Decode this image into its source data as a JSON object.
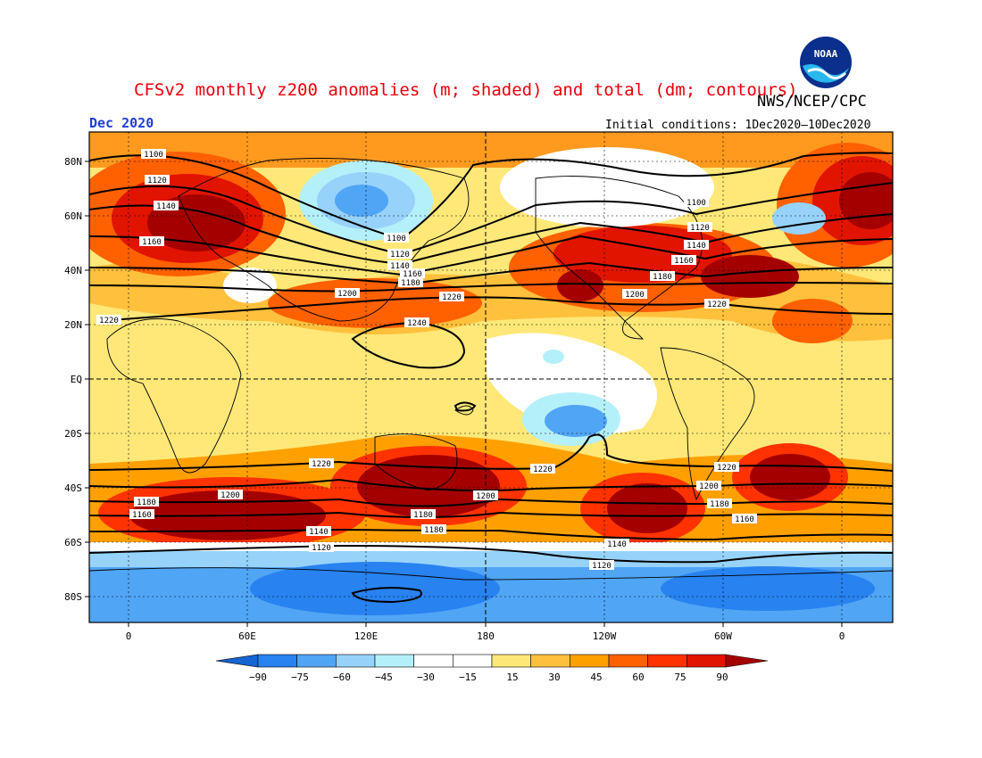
{
  "header": {
    "title": "CFSv2 monthly z200 anomalies (m; shaded) and total (dm; contours)",
    "credit": "NWS/NCEP/CPC",
    "month": "Dec 2020",
    "initial_conditions": "Initial conditions: 1Dec2020–10Dec2020",
    "logo_text": "NOAA"
  },
  "axes": {
    "lat_labels": [
      "80N",
      "60N",
      "40N",
      "20N",
      "EQ",
      "20S",
      "40S",
      "60S",
      "80S"
    ],
    "lon_labels": [
      "0",
      "60E",
      "120E",
      "180",
      "120W",
      "60W",
      "0"
    ]
  },
  "contour_labels": [
    {
      "id": "c1100a",
      "text": "1100"
    },
    {
      "id": "c1120a",
      "text": "1120"
    },
    {
      "id": "c1140a",
      "text": "1140"
    },
    {
      "id": "c1160a",
      "text": "1160"
    },
    {
      "id": "c1220a",
      "text": "1220"
    },
    {
      "id": "c1100b",
      "text": "1100"
    },
    {
      "id": "c1120b",
      "text": "1120"
    },
    {
      "id": "c1140b",
      "text": "1140"
    },
    {
      "id": "c1160b",
      "text": "1160"
    },
    {
      "id": "c1180b",
      "text": "1180"
    },
    {
      "id": "c1200b",
      "text": "1200"
    },
    {
      "id": "c1220b",
      "text": "1220"
    },
    {
      "id": "c1240",
      "text": "1240"
    },
    {
      "id": "c1100c",
      "text": "1100"
    },
    {
      "id": "c1120c",
      "text": "1120"
    },
    {
      "id": "c1140c",
      "text": "1140"
    },
    {
      "id": "c1160c",
      "text": "1160"
    },
    {
      "id": "c1180c",
      "text": "1180"
    },
    {
      "id": "c1200c",
      "text": "1200"
    },
    {
      "id": "c1220c",
      "text": "1220"
    },
    {
      "id": "s1220a",
      "text": "1220"
    },
    {
      "id": "s1220b",
      "text": "1220"
    },
    {
      "id": "s1220c",
      "text": "1220"
    },
    {
      "id": "s1200a",
      "text": "1200"
    },
    {
      "id": "s1200b",
      "text": "1200"
    },
    {
      "id": "s1200c",
      "text": "1200"
    },
    {
      "id": "s1180a",
      "text": "1180"
    },
    {
      "id": "s1180b",
      "text": "1180"
    },
    {
      "id": "s1180c",
      "text": "1180"
    },
    {
      "id": "s1160a",
      "text": "1160"
    },
    {
      "id": "s1160b",
      "text": "1160"
    },
    {
      "id": "s1140a",
      "text": "1140"
    },
    {
      "id": "s1140b",
      "text": "1140"
    },
    {
      "id": "s1120a",
      "text": "1120"
    },
    {
      "id": "s1120b",
      "text": "1120"
    }
  ],
  "colorbar": {
    "ticks": [
      "−90",
      "−75",
      "−60",
      "−45",
      "−30",
      "−15",
      "15",
      "30",
      "45",
      "60",
      "75",
      "90"
    ],
    "colors": [
      "#1464d2",
      "#2882f0",
      "#50a5f5",
      "#96d2fa",
      "#b4f0fa",
      "#ffffff",
      "#ffffff",
      "#ffe878",
      "#ffc03c",
      "#ffa000",
      "#ff6000",
      "#ff3200",
      "#e11400",
      "#a50000"
    ]
  }
}
